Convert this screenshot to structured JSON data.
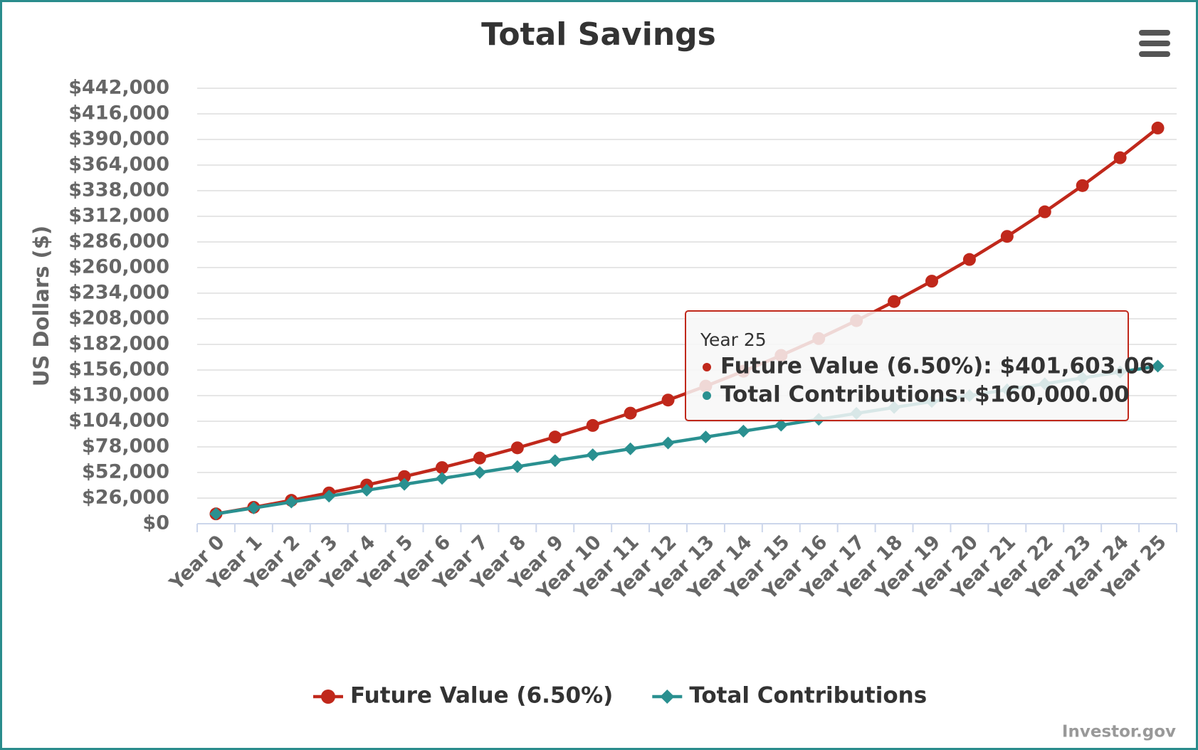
{
  "chart_data": {
    "type": "line",
    "title": "Total Savings",
    "y_label": "US Dollars ($)",
    "categories": [
      "Year 0",
      "Year 1",
      "Year 2",
      "Year 3",
      "Year 4",
      "Year 5",
      "Year 6",
      "Year 7",
      "Year 8",
      "Year 9",
      "Year 10",
      "Year 11",
      "Year 12",
      "Year 13",
      "Year 14",
      "Year 15",
      "Year 16",
      "Year 17",
      "Year 18",
      "Year 19",
      "Year 20",
      "Year 21",
      "Year 22",
      "Year 23",
      "Year 24",
      "Year 25"
    ],
    "series": [
      {
        "name": "Future Value (6.50%)",
        "color": "#c0281b",
        "marker": "circle",
        "values": [
          10000,
          16650,
          23732,
          31275,
          39308,
          47863,
          56974,
          66677,
          77011,
          88016,
          99737,
          112220,
          125515,
          139674,
          154753,
          170812,
          187915,
          206129,
          225528,
          246187,
          268190,
          291622,
          316578,
          343155,
          371460,
          401603.06
        ]
      },
      {
        "name": "Total Contributions",
        "color": "#2a9090",
        "marker": "diamond",
        "values": [
          10000,
          16000,
          22000,
          28000,
          34000,
          40000,
          46000,
          52000,
          58000,
          64000,
          70000,
          76000,
          82000,
          88000,
          94000,
          100000,
          106000,
          112000,
          118000,
          124000,
          130000,
          136000,
          142000,
          148000,
          154000,
          160000
        ]
      }
    ],
    "ylim": [
      0,
      442000
    ],
    "yticks": [
      {
        "value": 0,
        "label": "$0"
      },
      {
        "value": 26000,
        "label": "$26,000"
      },
      {
        "value": 52000,
        "label": "$52,000"
      },
      {
        "value": 78000,
        "label": "$78,000"
      },
      {
        "value": 104000,
        "label": "$104,000"
      },
      {
        "value": 130000,
        "label": "$130,000"
      },
      {
        "value": 156000,
        "label": "$156,000"
      },
      {
        "value": 182000,
        "label": "$182,000"
      },
      {
        "value": 208000,
        "label": "$208,000"
      },
      {
        "value": 234000,
        "label": "$234,000"
      },
      {
        "value": 260000,
        "label": "$260,000"
      },
      {
        "value": 286000,
        "label": "$286,000"
      },
      {
        "value": 312000,
        "label": "$312,000"
      },
      {
        "value": 338000,
        "label": "$338,000"
      },
      {
        "value": 364000,
        "label": "$364,000"
      },
      {
        "value": 390000,
        "label": "$390,000"
      },
      {
        "value": 416000,
        "label": "$416,000"
      },
      {
        "value": 442000,
        "label": "$442,000"
      }
    ],
    "grid": true,
    "legend": "bottom",
    "tooltip": {
      "title": "Year 25",
      "items": [
        "Future Value (6.50%): $401,603.06",
        "Total Contributions: $160,000.00"
      ]
    },
    "credits": "Investor.gov"
  }
}
